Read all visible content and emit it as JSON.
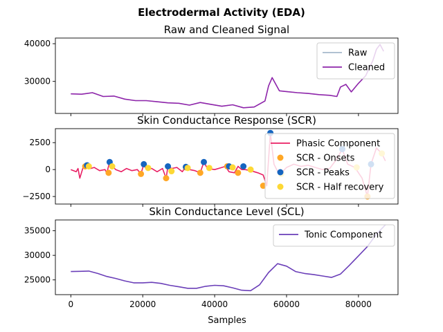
{
  "figure": {
    "suptitle": "Electrodermal Activity (EDA)",
    "xlabel": "Samples"
  },
  "chart_data": [
    {
      "type": "line",
      "title": "Raw and Cleaned Signal",
      "xlim": [
        -4300,
        91000
      ],
      "ylim": [
        21500,
        41500
      ],
      "yticks": [
        30000,
        40000
      ],
      "ytick_labels": [
        "30000",
        "40000"
      ],
      "legend_position": "upper-right",
      "series": [
        {
          "name": "Raw",
          "color": "#a4b8cc",
          "x": [
            0,
            3000,
            6000,
            9000,
            12000,
            15000,
            18000,
            21000,
            24000,
            27000,
            30000,
            33000,
            36000,
            39000,
            42000,
            45000,
            48000,
            51000,
            54000,
            55000,
            56000,
            58000,
            60000,
            63000,
            66000,
            69000,
            72000,
            74000,
            75000,
            76500,
            78000,
            80000,
            82000,
            83000,
            84000,
            85000,
            86000,
            87000
          ],
          "y": [
            26700,
            26600,
            27000,
            26000,
            26100,
            25300,
            24900,
            24900,
            24600,
            24300,
            24200,
            23700,
            24400,
            23900,
            23400,
            23800,
            23000,
            23200,
            24800,
            28800,
            31000,
            27500,
            27300,
            27000,
            26800,
            26500,
            26300,
            26000,
            28500,
            29200,
            27200,
            29500,
            31500,
            33500,
            35500,
            38500,
            39800,
            38000
          ]
        },
        {
          "name": "Cleaned",
          "color": "#8e24aa",
          "x": [
            0,
            3000,
            6000,
            9000,
            12000,
            15000,
            18000,
            21000,
            24000,
            27000,
            30000,
            33000,
            36000,
            39000,
            42000,
            45000,
            48000,
            51000,
            54000,
            55000,
            56000,
            58000,
            60000,
            63000,
            66000,
            69000,
            72000,
            74000,
            75000,
            76500,
            78000,
            80000,
            82000,
            83000,
            84000,
            85000,
            86000,
            87000
          ],
          "y": [
            26700,
            26600,
            27000,
            26000,
            26100,
            25300,
            24900,
            24900,
            24600,
            24300,
            24200,
            23700,
            24400,
            23900,
            23400,
            23800,
            23000,
            23200,
            24800,
            28800,
            31000,
            27500,
            27300,
            27000,
            26800,
            26500,
            26300,
            26000,
            28500,
            29200,
            27200,
            29500,
            31500,
            33500,
            35500,
            38500,
            39800,
            38000
          ]
        }
      ]
    },
    {
      "type": "line",
      "title": "Skin Conductance Response (SCR)",
      "xlim": [
        -4300,
        91000
      ],
      "ylim": [
        -3200,
        3800
      ],
      "yticks": [
        -2500,
        0,
        2500
      ],
      "ytick_labels": [
        "−2500",
        "0",
        "2500"
      ],
      "legend_position": "upper-right",
      "series": [
        {
          "name": "Phasic Component",
          "color": "#e91e63",
          "x": [
            0,
            1500,
            2000,
            2500,
            3500,
            4500,
            5500,
            6500,
            8000,
            9500,
            10000,
            10800,
            11500,
            12500,
            14000,
            15500,
            17000,
            18500,
            19500,
            20300,
            21000,
            22500,
            24000,
            25500,
            26500,
            27000,
            28000,
            29500,
            31000,
            32000,
            33000,
            34500,
            36000,
            37000,
            38000,
            40000,
            42000,
            43000,
            44000,
            45500,
            46500,
            47500,
            48500,
            50000,
            52000,
            53500,
            54500,
            55500,
            56500,
            58000,
            60000,
            62000,
            64000,
            66000,
            68000,
            70000,
            72000,
            74000,
            75500,
            77000,
            79000,
            81000,
            82500,
            83500,
            85000,
            86500,
            87500
          ],
          "y": [
            0,
            -200,
            100,
            -800,
            300,
            400,
            100,
            200,
            -100,
            0,
            -300,
            700,
            300,
            0,
            -200,
            100,
            -100,
            0,
            -400,
            500,
            0,
            100,
            -200,
            100,
            -800,
            300,
            100,
            200,
            -200,
            300,
            0,
            -100,
            -300,
            700,
            100,
            0,
            200,
            300,
            -200,
            -300,
            300,
            0,
            0,
            -100,
            -300,
            -500,
            -1500,
            3400,
            500,
            -500,
            200,
            500,
            300,
            400,
            200,
            0,
            100,
            1000,
            1900,
            500,
            200,
            -800,
            -2500,
            500,
            2000,
            1500,
            800
          ]
        },
        {
          "name": "SCR - Onsets",
          "color": "#ffa726",
          "mode": "markers",
          "x": [
            4000,
            10500,
            19500,
            26500,
            32000,
            36000,
            43500,
            46500,
            53500,
            82500
          ],
          "y": [
            300,
            -300,
            -400,
            -800,
            200,
            -300,
            300,
            -300,
            -1500,
            -2500
          ]
        },
        {
          "name": "SCR - Peaks",
          "color": "#1565c0",
          "mode": "markers",
          "x": [
            4500,
            10800,
            20300,
            27000,
            32000,
            37000,
            44000,
            48000,
            55500,
            75500,
            83500
          ],
          "y": [
            400,
            700,
            500,
            300,
            250,
            700,
            300,
            300,
            3400,
            1900,
            500
          ]
        },
        {
          "name": "SCR - Half recovery",
          "color": "#fdd835",
          "mode": "markers",
          "x": [
            5000,
            11500,
            21500,
            28000,
            32500,
            38500,
            45000,
            50000,
            58500,
            79500,
            86500
          ],
          "y": [
            300,
            300,
            150,
            -150,
            150,
            150,
            200,
            0,
            -400,
            200,
            1500
          ]
        }
      ]
    },
    {
      "type": "line",
      "title": "Skin Conductance Level (SCL)",
      "xlim": [
        -4300,
        91000
      ],
      "ylim": [
        22000,
        37200
      ],
      "xticks": [
        0,
        20000,
        40000,
        60000,
        80000
      ],
      "xtick_labels": [
        "0",
        "20000",
        "40000",
        "60000",
        "80000"
      ],
      "yticks": [
        25000,
        30000,
        35000
      ],
      "ytick_labels": [
        "25000",
        "30000",
        "35000"
      ],
      "legend_position": "upper-right",
      "series": [
        {
          "name": "Tonic Component",
          "color": "#6a3eb8",
          "x": [
            0,
            2500,
            5000,
            7500,
            10000,
            12500,
            15000,
            17500,
            20000,
            22500,
            25000,
            27500,
            30000,
            32500,
            35000,
            37500,
            40000,
            42500,
            45000,
            47500,
            50000,
            52500,
            55000,
            57500,
            60000,
            62500,
            65000,
            67500,
            70000,
            72500,
            75000,
            77500,
            80000,
            82500,
            85000,
            87500
          ],
          "y": [
            26700,
            26750,
            26800,
            26300,
            25700,
            25300,
            24800,
            24400,
            24400,
            24500,
            24300,
            23900,
            23600,
            23300,
            23300,
            23700,
            23900,
            23800,
            23400,
            22900,
            22800,
            24000,
            26500,
            28300,
            27800,
            26700,
            26300,
            26100,
            25800,
            25500,
            26200,
            28000,
            29900,
            31800,
            34300,
            36200
          ]
        }
      ]
    }
  ]
}
